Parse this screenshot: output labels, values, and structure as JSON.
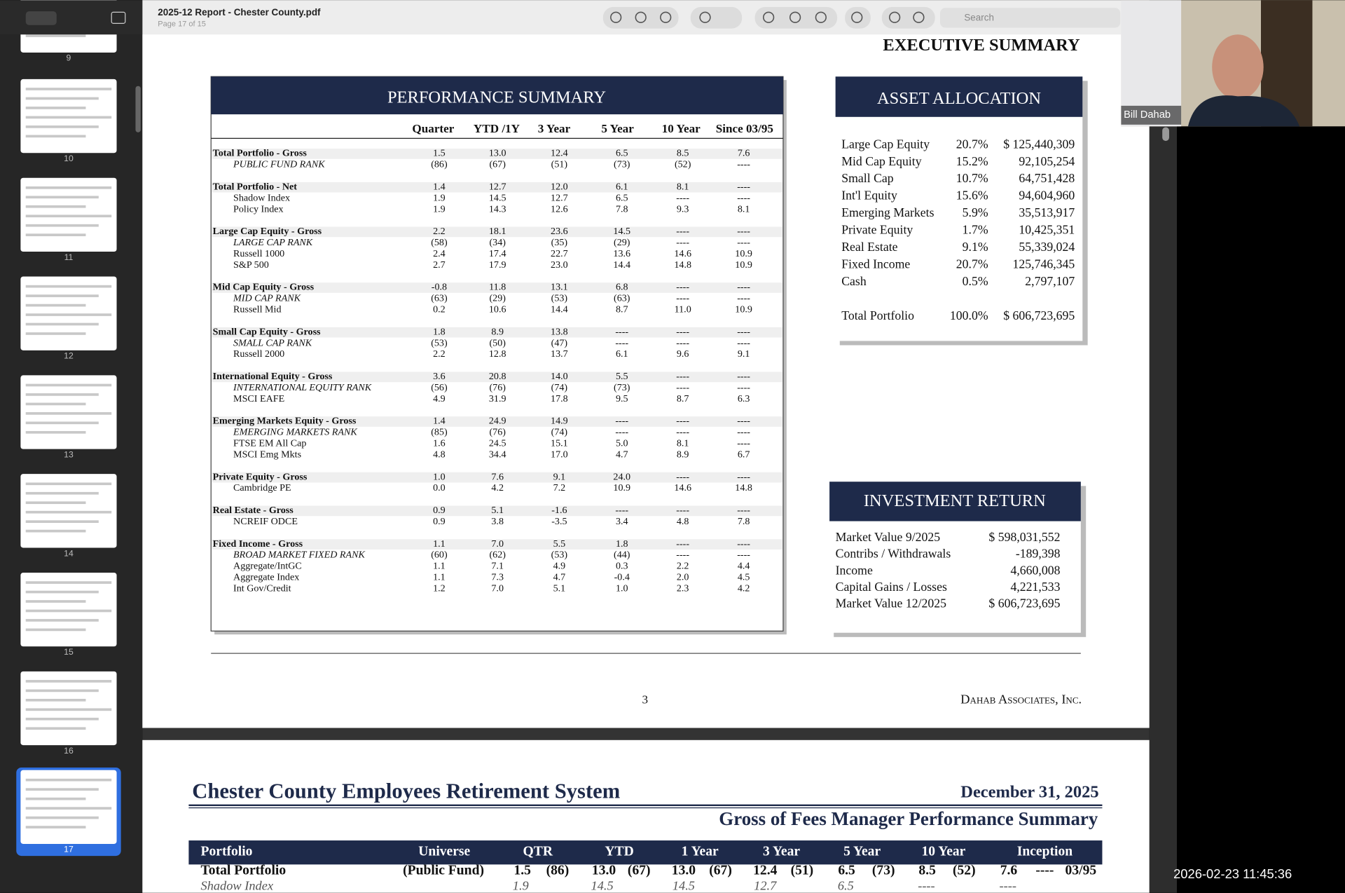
{
  "viewer": {
    "file_title": "2025-12 Report - Chester County.pdf",
    "page_info": "Page 17 of 15",
    "search": "Search",
    "thumbnails": [
      "9",
      "10",
      "11",
      "12",
      "13",
      "14",
      "15",
      "16",
      "17"
    ]
  },
  "video": {
    "name": "Bill Dahab",
    "timestamp": "2026-02-23 11:45:36"
  },
  "page": {
    "header": "EXECUTIVE SUMMARY",
    "performance": {
      "title": "PERFORMANCE SUMMARY",
      "columns": [
        "Quarter",
        "YTD /1Y",
        "3 Year",
        "5 Year",
        "10 Year",
        "Since 03/95"
      ],
      "groups": [
        {
          "rank": true,
          "rows": [
            [
              "Total Portfolio - Gross",
              "1.5",
              "13.0",
              "12.4",
              "6.5",
              "8.5",
              "7.6"
            ],
            [
              "PUBLIC FUND RANK",
              "(86)",
              "(67)",
              "(51)",
              "(73)",
              "(52)",
              "----"
            ]
          ]
        },
        {
          "rank": false,
          "rows": [
            [
              "Total Portfolio - Net",
              "1.4",
              "12.7",
              "12.0",
              "6.1",
              "8.1",
              "----"
            ],
            [
              "Shadow Index",
              "1.9",
              "14.5",
              "12.7",
              "6.5",
              "----",
              "----"
            ],
            [
              "Policy Index",
              "1.9",
              "14.3",
              "12.6",
              "7.8",
              "9.3",
              "8.1"
            ]
          ]
        },
        {
          "rank": true,
          "rows": [
            [
              "Large Cap Equity - Gross",
              "2.2",
              "18.1",
              "23.6",
              "14.5",
              "----",
              "----"
            ],
            [
              "LARGE CAP RANK",
              "(58)",
              "(34)",
              "(35)",
              "(29)",
              "----",
              "----"
            ],
            [
              "Russell 1000",
              "2.4",
              "17.4",
              "22.7",
              "13.6",
              "14.6",
              "10.9"
            ],
            [
              "S&P 500",
              "2.7",
              "17.9",
              "23.0",
              "14.4",
              "14.8",
              "10.9"
            ]
          ]
        },
        {
          "rank": true,
          "rows": [
            [
              "Mid Cap Equity - Gross",
              "-0.8",
              "11.8",
              "13.1",
              "6.8",
              "----",
              "----"
            ],
            [
              "MID CAP RANK",
              "(63)",
              "(29)",
              "(53)",
              "(63)",
              "----",
              "----"
            ],
            [
              "Russell Mid",
              "0.2",
              "10.6",
              "14.4",
              "8.7",
              "11.0",
              "10.9"
            ]
          ]
        },
        {
          "rank": true,
          "rows": [
            [
              "Small Cap Equity - Gross",
              "1.8",
              "8.9",
              "13.8",
              "----",
              "----",
              "----"
            ],
            [
              "SMALL CAP RANK",
              "(53)",
              "(50)",
              "(47)",
              "----",
              "----",
              "----"
            ],
            [
              "Russell 2000",
              "2.2",
              "12.8",
              "13.7",
              "6.1",
              "9.6",
              "9.1"
            ]
          ]
        },
        {
          "rank": true,
          "rows": [
            [
              "International Equity - Gross",
              "3.6",
              "20.8",
              "14.0",
              "5.5",
              "----",
              "----"
            ],
            [
              "INTERNATIONAL EQUITY RANK",
              "(56)",
              "(76)",
              "(74)",
              "(73)",
              "----",
              "----"
            ],
            [
              "MSCI EAFE",
              "4.9",
              "31.9",
              "17.8",
              "9.5",
              "8.7",
              "6.3"
            ]
          ]
        },
        {
          "rank": true,
          "rows": [
            [
              "Emerging Markets Equity - Gross",
              "1.4",
              "24.9",
              "14.9",
              "----",
              "----",
              "----"
            ],
            [
              "EMERGING MARKETS RANK",
              "(85)",
              "(76)",
              "(74)",
              "----",
              "----",
              "----"
            ],
            [
              "FTSE EM All Cap",
              "1.6",
              "24.5",
              "15.1",
              "5.0",
              "8.1",
              "----"
            ],
            [
              "MSCI Emg Mkts",
              "4.8",
              "34.4",
              "17.0",
              "4.7",
              "8.9",
              "6.7"
            ]
          ]
        },
        {
          "rank": false,
          "rows": [
            [
              "Private Equity - Gross",
              "1.0",
              "7.6",
              "9.1",
              "24.0",
              "----",
              "----"
            ],
            [
              "Cambridge PE",
              "0.0",
              "4.2",
              "7.2",
              "10.9",
              "14.6",
              "14.8"
            ]
          ]
        },
        {
          "rank": false,
          "rows": [
            [
              "Real Estate - Gross",
              "0.9",
              "5.1",
              "-1.6",
              "----",
              "----",
              "----"
            ],
            [
              "NCREIF ODCE",
              "0.9",
              "3.8",
              "-3.5",
              "3.4",
              "4.8",
              "7.8"
            ]
          ]
        },
        {
          "rank": true,
          "rows": [
            [
              "Fixed Income - Gross",
              "1.1",
              "7.0",
              "5.5",
              "1.8",
              "----",
              "----"
            ],
            [
              "BROAD MARKET FIXED RANK",
              "(60)",
              "(62)",
              "(53)",
              "(44)",
              "----",
              "----"
            ],
            [
              "Aggregate/IntGC",
              "1.1",
              "7.1",
              "4.9",
              "0.3",
              "2.2",
              "4.4"
            ],
            [
              "Aggregate Index",
              "1.1",
              "7.3",
              "4.7",
              "-0.4",
              "2.0",
              "4.5"
            ],
            [
              "Int Gov/Credit",
              "1.2",
              "7.0",
              "5.1",
              "1.0",
              "2.3",
              "4.2"
            ]
          ]
        }
      ]
    },
    "allocation": {
      "title": "ASSET ALLOCATION",
      "rows": [
        [
          "Large Cap Equity",
          "20.7%",
          "$ 125,440,309"
        ],
        [
          "Mid Cap Equity",
          "15.2%",
          "92,105,254"
        ],
        [
          "Small Cap",
          "10.7%",
          "64,751,428"
        ],
        [
          "Int'l Equity",
          "15.6%",
          "94,604,960"
        ],
        [
          "Emerging Markets",
          "5.9%",
          "35,513,917"
        ],
        [
          "Private Equity",
          "1.7%",
          "10,425,351"
        ],
        [
          "Real Estate",
          "9.1%",
          "55,339,024"
        ],
        [
          "Fixed Income",
          "20.7%",
          "125,746,345"
        ],
        [
          "Cash",
          "0.5%",
          "2,797,107"
        ]
      ],
      "total": [
        "Total Portfolio",
        "100.0%",
        "$ 606,723,695"
      ]
    },
    "investment_return": {
      "title": "INVESTMENT RETURN",
      "rows": [
        [
          "Market Value 9/2025",
          "$ 598,031,552"
        ],
        [
          "Contribs / Withdrawals",
          "-189,398"
        ],
        [
          "Income",
          "4,660,008"
        ],
        [
          "Capital Gains / Losses",
          "4,221,533"
        ],
        [
          "Market Value 12/2025",
          "$ 606,723,695"
        ]
      ]
    },
    "footer": {
      "page_number": "3",
      "company": "Dahab Associates, Inc."
    }
  },
  "next_page": {
    "title": "Chester County Employees Retirement System",
    "date": "December 31, 2025",
    "subtitle": "Gross of Fees Manager Performance Summary",
    "columns": [
      "Portfolio",
      "Universe",
      "QTR",
      "YTD",
      "1 Year",
      "3 Year",
      "5 Year",
      "10 Year",
      "Inception"
    ],
    "total_row": [
      "Total Portfolio",
      "(Public Fund)",
      "1.5",
      "(86)",
      "13.0",
      "(67)",
      "13.0",
      "(67)",
      "12.4",
      "(51)",
      "6.5",
      "(73)",
      "8.5",
      "(52)",
      "7.6",
      "----",
      "03/95"
    ],
    "shadow_row": [
      "Shadow Index",
      "1.9",
      "14.5",
      "14.5",
      "12.7",
      "6.5",
      "----",
      "----"
    ]
  }
}
